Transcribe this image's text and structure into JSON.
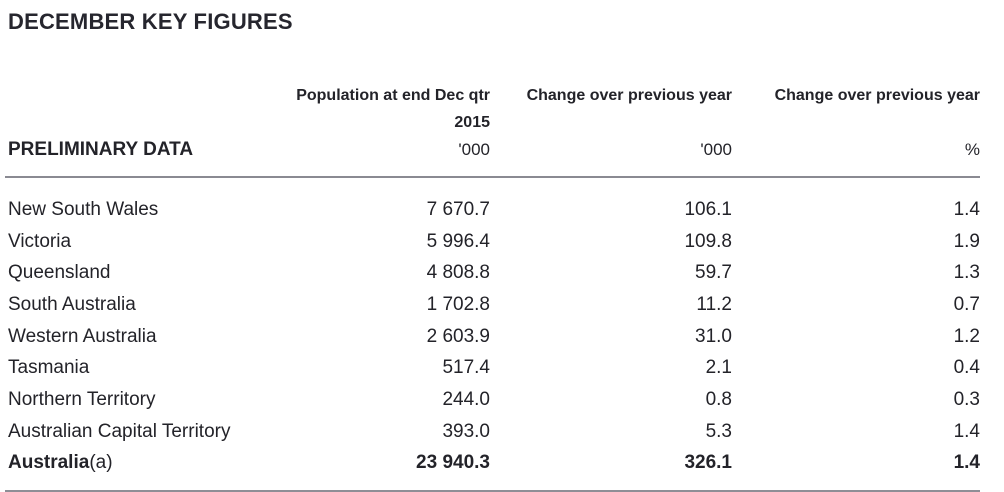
{
  "page": {
    "title": "DECEMBER KEY FIGURES"
  },
  "table": {
    "group_label": "PRELIMINARY DATA",
    "columns": [
      {
        "label": "Population at end Dec qtr 2015",
        "unit": "'000"
      },
      {
        "label": "Change over previous year",
        "unit": "'000"
      },
      {
        "label": "Change over previous year",
        "unit": "%"
      }
    ],
    "rows": [
      {
        "name": "New South Wales",
        "population": "7 670.7",
        "change": "106.1",
        "change_pct": "1.4"
      },
      {
        "name": "Victoria",
        "population": "5 996.4",
        "change": "109.8",
        "change_pct": "1.9"
      },
      {
        "name": "Queensland",
        "population": "4 808.8",
        "change": "59.7",
        "change_pct": "1.3"
      },
      {
        "name": "South Australia",
        "population": "1 702.8",
        "change": "11.2",
        "change_pct": "0.7"
      },
      {
        "name": "Western Australia",
        "population": "2 603.9",
        "change": "31.0",
        "change_pct": "1.2"
      },
      {
        "name": "Tasmania",
        "population": "517.4",
        "change": "2.1",
        "change_pct": "0.4"
      },
      {
        "name": "Northern Territory",
        "population": "244.0",
        "change": "0.8",
        "change_pct": "0.3"
      },
      {
        "name": "Australian Capital Territory",
        "population": "393.0",
        "change": "5.3",
        "change_pct": "1.4"
      },
      {
        "name": "Australia",
        "name_suffix": "(a)",
        "population": "23 940.3",
        "change": "326.1",
        "change_pct": "1.4"
      }
    ]
  },
  "colors": {
    "text": "#232329",
    "rule_top": "#8a8a92",
    "rule_bottom": "#8e8e96",
    "background": "#ffffff"
  }
}
